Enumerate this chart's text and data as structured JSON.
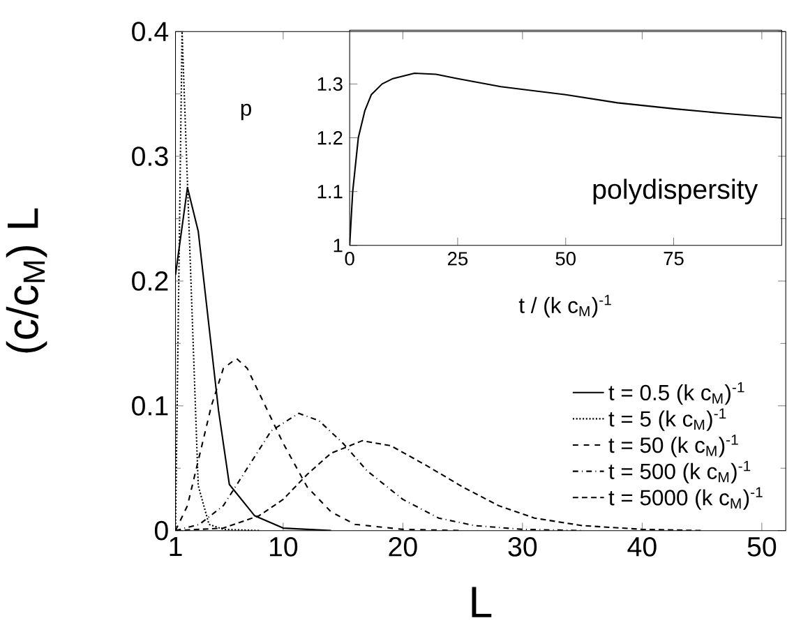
{
  "chart_data": [
    {
      "type": "line",
      "xlabel": "L",
      "ylabel": "(c/c$_{M}$) L",
      "xlim": [
        1,
        52
      ],
      "ylim": [
        0,
        0.4
      ],
      "xticks": [
        1,
        10,
        20,
        30,
        40,
        50
      ],
      "yticks": [
        0,
        0.1,
        0.2,
        0.3,
        0.4
      ],
      "grid": false,
      "legend": "bottom right",
      "series": [
        {
          "name": "t = 0.5 (k c$_{M}$)$^{-1}$",
          "color": "#000000",
          "line_style": "solid",
          "x": [
            1,
            2,
            2.9,
            4.6,
            5.5,
            7.6,
            10,
            14
          ],
          "values": [
            0.205,
            0.275,
            0.24,
            0.096,
            0.037,
            0.012,
            0.002,
            0
          ]
        },
        {
          "name": "t = 5 (k c$_{M}$)$^{-1}$",
          "color": "#000000",
          "line_style": "dotted",
          "x": [
            1,
            1.55,
            2.9,
            3.8,
            5,
            8
          ],
          "values": [
            0,
            0.4,
            0.036,
            0.005,
            0.001,
            0
          ]
        },
        {
          "name": "t = 50 (k c$_{M}$)$^{-1}$",
          "color": "#000000",
          "line_style": "dashed",
          "x": [
            1,
            2,
            3,
            4,
            5,
            6.1,
            7,
            8,
            10,
            12,
            14,
            16,
            20,
            25
          ],
          "values": [
            0,
            0.02,
            0.06,
            0.1,
            0.13,
            0.138,
            0.13,
            0.11,
            0.07,
            0.035,
            0.015,
            0.005,
            0.001,
            0
          ]
        },
        {
          "name": "t = 500 (k c$_{M}$)$^{-1}$",
          "color": "#000000",
          "line_style": "dashdot",
          "x": [
            1,
            3,
            5,
            7,
            9,
            11.3,
            13,
            15,
            17,
            20,
            23,
            26,
            30,
            35
          ],
          "values": [
            0,
            0.005,
            0.02,
            0.05,
            0.08,
            0.094,
            0.088,
            0.07,
            0.048,
            0.025,
            0.01,
            0.004,
            0.001,
            0
          ]
        },
        {
          "name": "t = 5000 (k c$_{M}$)$^{-1}$",
          "color": "#000000",
          "line_style": "densely dashed",
          "x": [
            1,
            5,
            8,
            10,
            12,
            14,
            16.6,
            19,
            22,
            25,
            28,
            31,
            35,
            40,
            45
          ],
          "values": [
            0,
            0.002,
            0.012,
            0.025,
            0.045,
            0.062,
            0.072,
            0.068,
            0.052,
            0.035,
            0.02,
            0.01,
            0.004,
            0.001,
            0
          ]
        }
      ]
    },
    {
      "type": "line",
      "xlabel": "t / (k c$_{M}$)$^{-1}$",
      "ylabel": "p",
      "annotations": [
        "polydispersity"
      ],
      "xlim": [
        0,
        100
      ],
      "ylim": [
        1,
        1.4
      ],
      "xticks": [
        0,
        25,
        50,
        75
      ],
      "yticks": [
        1,
        1.1,
        1.2,
        1.3
      ],
      "grid": false,
      "series": [
        {
          "color": "#000000",
          "line_style": "solid",
          "x": [
            0,
            0.7,
            2,
            3.5,
            5,
            7.5,
            10,
            15,
            20,
            25,
            35,
            50,
            62,
            75,
            87,
            100
          ],
          "values": [
            1.0,
            1.1,
            1.2,
            1.25,
            1.28,
            1.3,
            1.31,
            1.32,
            1.318,
            1.31,
            1.295,
            1.28,
            1.265,
            1.254,
            1.245,
            1.237
          ]
        }
      ]
    }
  ]
}
